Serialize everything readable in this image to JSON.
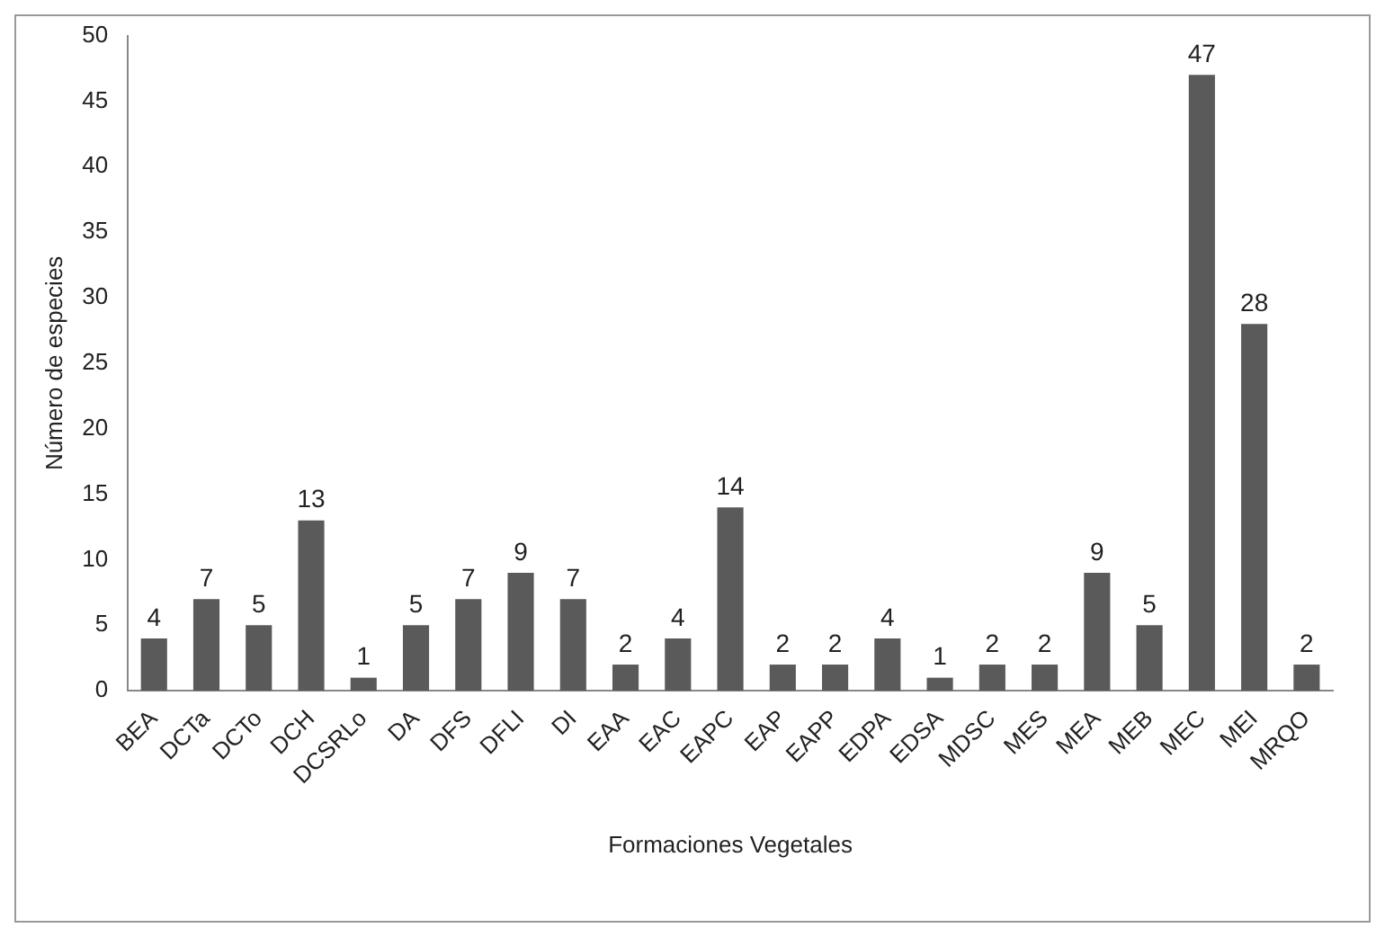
{
  "chart_data": {
    "type": "bar",
    "xlabel": "Formaciones Vegetales",
    "ylabel": "Número de especies",
    "categories": [
      "BEA",
      "DCTa",
      "DCTo",
      "DCH",
      "DCSRLo",
      "DA",
      "DFS",
      "DFLI",
      "DI",
      "EAA",
      "EAC",
      "EAPC",
      "EAP",
      "EAPP",
      "EDPA",
      "EDSA",
      "MDSC",
      "MES",
      "MEA",
      "MEB",
      "MEC",
      "MEI",
      "MRQO"
    ],
    "values": [
      4,
      7,
      5,
      13,
      1,
      5,
      7,
      9,
      7,
      2,
      4,
      14,
      2,
      2,
      4,
      1,
      2,
      2,
      9,
      5,
      47,
      28,
      2
    ],
    "color": "#5a5a5a",
    "ylim": [
      0,
      50
    ],
    "yticks": [
      0,
      5,
      10,
      15,
      20,
      25,
      30,
      35,
      40,
      45,
      50
    ],
    "grid": false,
    "legend": false,
    "data_labels": true
  }
}
